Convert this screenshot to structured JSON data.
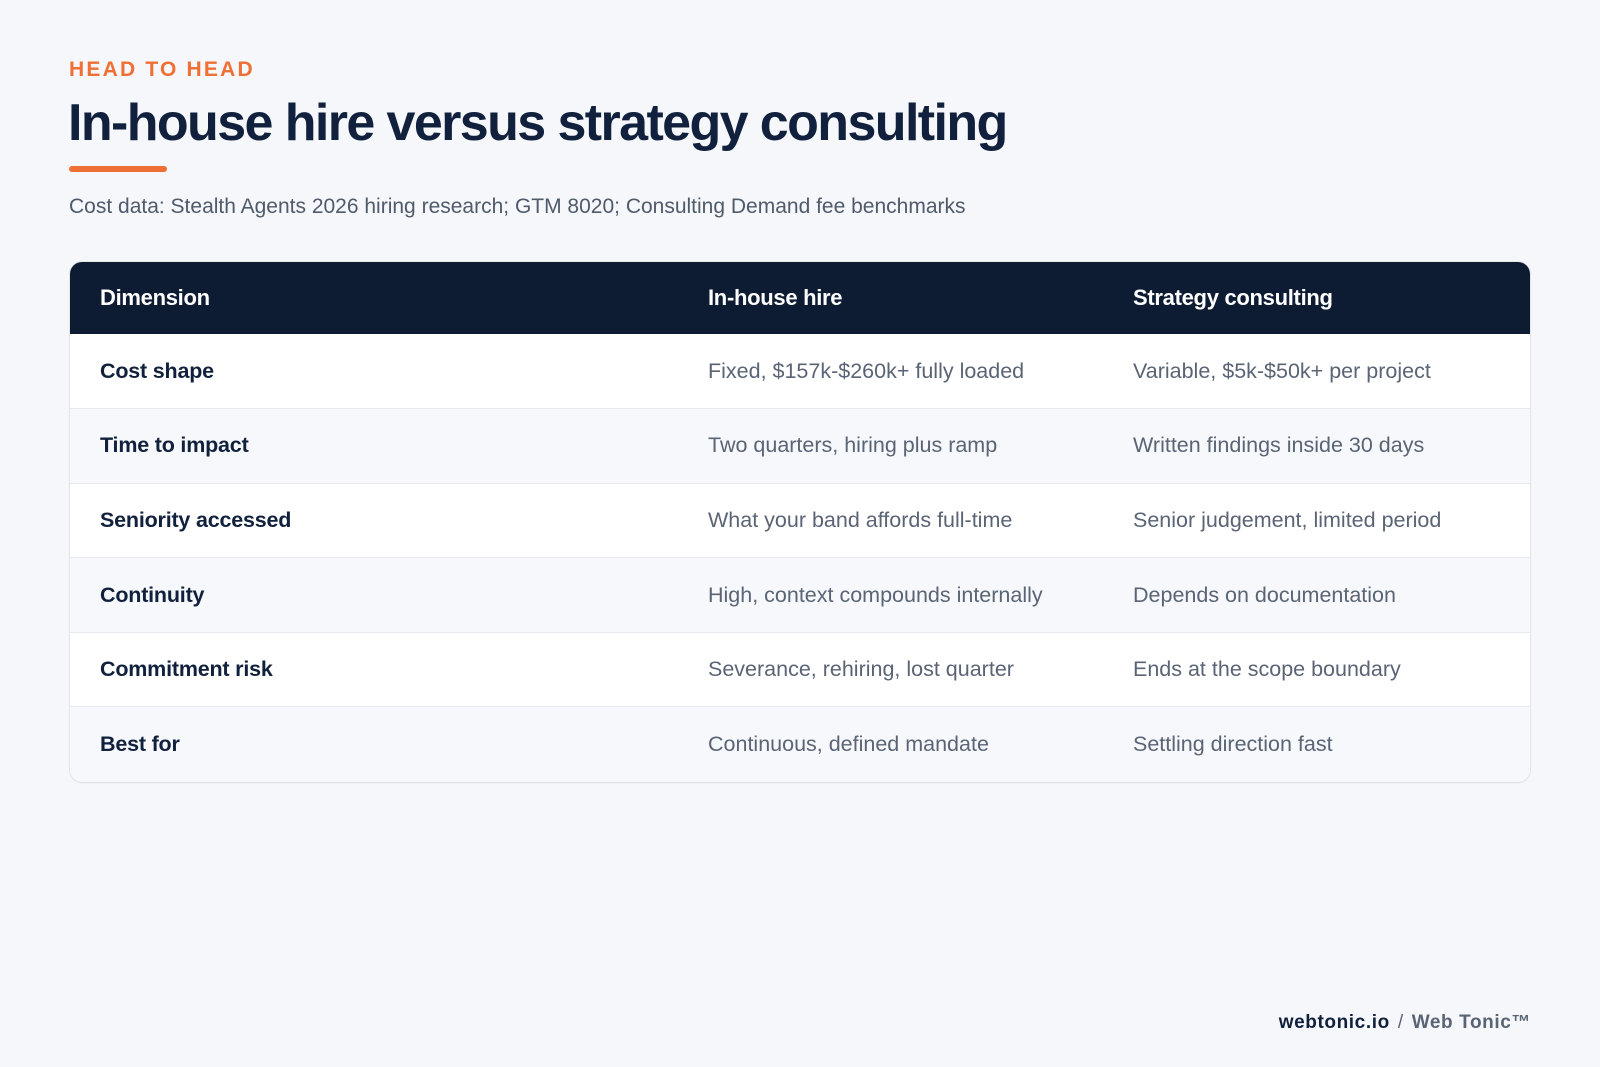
{
  "header": {
    "eyebrow": "HEAD TO HEAD",
    "title": "In-house hire versus strategy consulting",
    "subtitle": "Cost data: Stealth Agents 2026 hiring research; GTM 8020; Consulting Demand fee benchmarks"
  },
  "table": {
    "columns": [
      "Dimension",
      "In-house hire",
      "Strategy consulting"
    ],
    "rows": [
      [
        "Cost shape",
        "Fixed, $157k-$260k+ fully loaded",
        "Variable, $5k-$50k+ per project"
      ],
      [
        "Time to impact",
        "Two quarters, hiring plus ramp",
        "Written findings inside 30 days"
      ],
      [
        "Seniority accessed",
        "What your band affords full-time",
        "Senior judgement, limited period"
      ],
      [
        "Continuity",
        "High, context compounds internally",
        "Depends on documentation"
      ],
      [
        "Commitment risk",
        "Severance, rehiring, lost quarter",
        "Ends at the scope boundary"
      ],
      [
        "Best for",
        "Continuous, defined mandate",
        "Settling direction fast"
      ]
    ]
  },
  "footer": {
    "site": "webtonic.io",
    "separator": "/",
    "brand": "Web Tonic™"
  },
  "colors": {
    "accent": "#ef7035",
    "navy": "#0d1b33",
    "background": "#f5f7fa"
  }
}
